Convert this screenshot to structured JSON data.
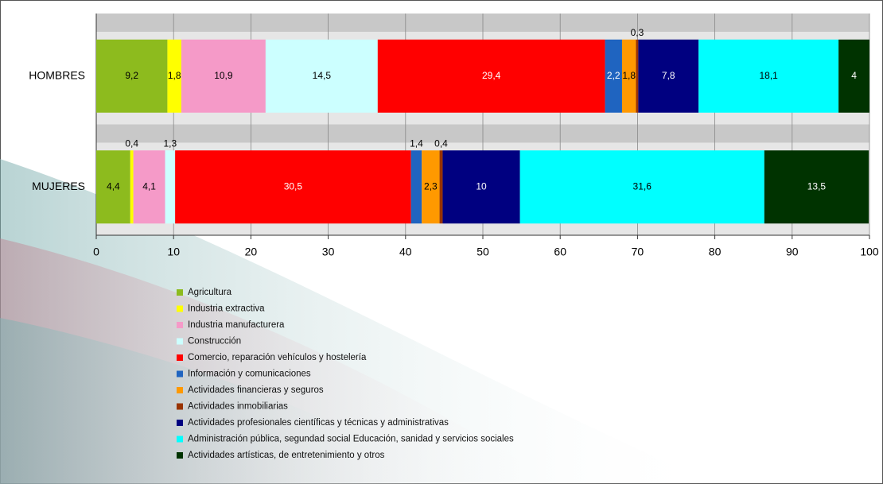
{
  "chart_data": {
    "type": "stacked-bar-horizontal",
    "categories": [
      "HOMBRES",
      "MUJERES"
    ],
    "xlim": [
      0,
      100
    ],
    "xticks": [
      0,
      10,
      20,
      30,
      40,
      50,
      60,
      70,
      80,
      90,
      100
    ],
    "grid": true,
    "series": [
      {
        "name": "Agricultura",
        "color": "#8dbb1e",
        "values": [
          9.2,
          4.4
        ],
        "value_labels": [
          "9,2",
          "4,4"
        ]
      },
      {
        "name": "Industria extractiva",
        "color": "#ffff00",
        "values": [
          1.8,
          0.4
        ],
        "value_labels": [
          "1,8",
          "0,4"
        ]
      },
      {
        "name": "Industria manufacturera",
        "color": "#f59ac8",
        "values": [
          10.9,
          4.1
        ],
        "value_labels": [
          "10,9",
          "4,1"
        ]
      },
      {
        "name": "Construcción",
        "color": "#ccffff",
        "values": [
          14.5,
          1.3
        ],
        "value_labels": [
          "14,5",
          "1,3"
        ]
      },
      {
        "name": "Comercio, reparación vehículos y hostelería",
        "color": "#ff0000",
        "values": [
          29.4,
          30.5
        ],
        "value_labels": [
          "29,4",
          "30,5"
        ]
      },
      {
        "name": "Información y comunicaciones",
        "color": "#1f64c0",
        "values": [
          2.2,
          1.4
        ],
        "value_labels": [
          "2,2",
          "1,4"
        ]
      },
      {
        "name": "Actividades financieras y seguros",
        "color": "#ff9900",
        "values": [
          1.8,
          2.3
        ],
        "value_labels": [
          "1,8",
          "2,3"
        ]
      },
      {
        "name": "Actividades inmobiliarias",
        "color": "#993300",
        "values": [
          0.3,
          0.4
        ],
        "value_labels": [
          "0,3",
          "0,4"
        ]
      },
      {
        "name": "Actividades profesionales científicas y técnicas y administrativas",
        "color": "#000080",
        "values": [
          7.8,
          10
        ],
        "value_labels": [
          "7,8",
          "10"
        ]
      },
      {
        "name": "Administración pública, segundad social Educación, sanidad y servicios sociales",
        "color": "#00ffff",
        "values": [
          18.1,
          31.6
        ],
        "value_labels": [
          "18,1",
          "31,6"
        ]
      },
      {
        "name": "Actividades artísticas, de entretenimiento y otros",
        "color": "#003300",
        "values": [
          4,
          13.5
        ],
        "value_labels": [
          "4",
          "13,5"
        ]
      }
    ]
  }
}
